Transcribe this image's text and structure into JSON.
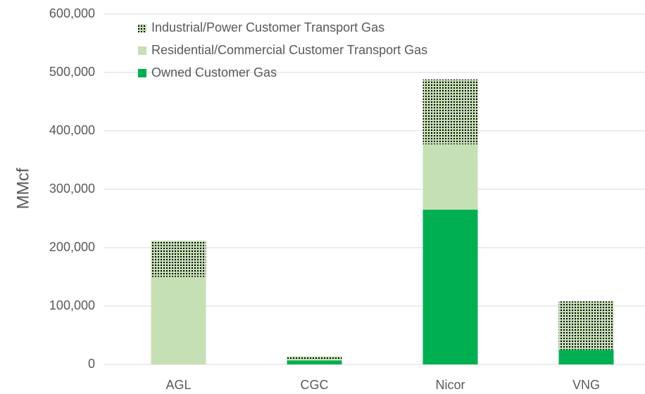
{
  "chart_data": {
    "type": "stacked_bar",
    "y_label": "MMcf",
    "categories": [
      "AGL",
      "CGC",
      "Nicor",
      "VNG"
    ],
    "series": [
      {
        "name": "Owned Customer Gas",
        "color": "#00b050",
        "values": [
          0,
          7000,
          265000,
          25000
        ]
      },
      {
        "name": "Residential/Commercial Customer Transport Gas",
        "color": "#c5e0b4",
        "values": [
          150000,
          1000,
          112000,
          0
        ]
      },
      {
        "name": "Industrial/Power Customer Transport Gas",
        "color": "#c5e0b4",
        "pattern": "dotted",
        "values": [
          62000,
          6000,
          111000,
          83000
        ]
      }
    ],
    "ylim": [
      0,
      600000
    ],
    "yticks": [
      0,
      {
        "value": 100000,
        "label": "100,000"
      },
      {
        "value": 200000,
        "label": "200,000"
      },
      {
        "value": 300000,
        "label": "300,000"
      },
      {
        "value": 400000,
        "label": "400,000"
      },
      {
        "value": 500000,
        "label": "500,000"
      },
      {
        "value": 600000,
        "label": "600,000"
      }
    ],
    "grid": true,
    "legend": "top-left"
  }
}
